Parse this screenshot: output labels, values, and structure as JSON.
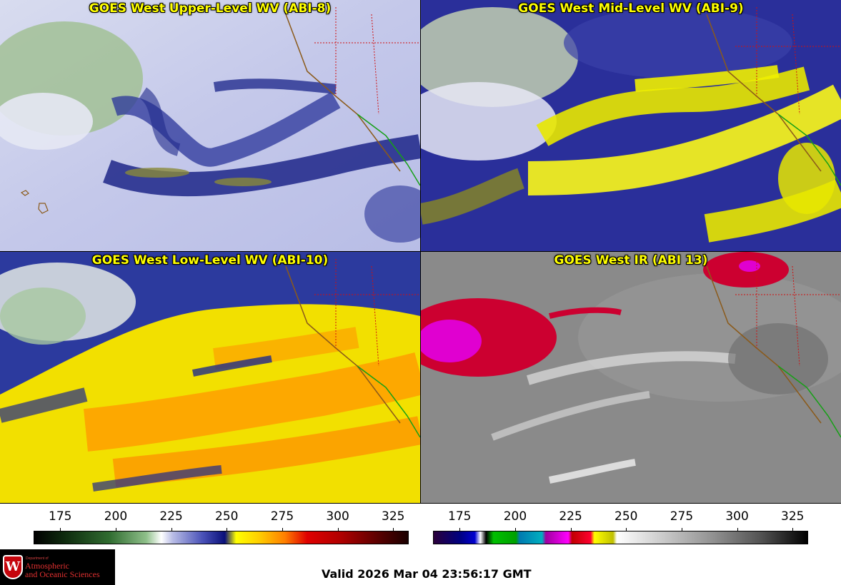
{
  "panels": [
    {
      "title": "GOES West Upper-Level WV (ABI-8)"
    },
    {
      "title": "GOES West Mid-Level WV (ABI-9)"
    },
    {
      "title": "GOES West Low-Level WV (ABI-10)"
    },
    {
      "title": "GOES West IR (ABI 13)"
    }
  ],
  "colorbars": {
    "left": {
      "ticks": [
        "175",
        "200",
        "225",
        "250",
        "275",
        "300",
        "325"
      ],
      "values": [
        175,
        200,
        225,
        250,
        275,
        300,
        325
      ],
      "range": [
        163,
        332
      ]
    },
    "right": {
      "ticks": [
        "175",
        "200",
        "225",
        "250",
        "275",
        "300",
        "325"
      ],
      "values": [
        175,
        200,
        225,
        250,
        275,
        300,
        325
      ],
      "range": [
        163,
        332
      ]
    }
  },
  "logo": {
    "line1": "Department of",
    "line2": "Atmospheric",
    "line3": "and Oceanic Sciences",
    "crest_letter": "W"
  },
  "footer": {
    "valid": "Valid 2026 Mar 04 23:56:17 GMT"
  }
}
